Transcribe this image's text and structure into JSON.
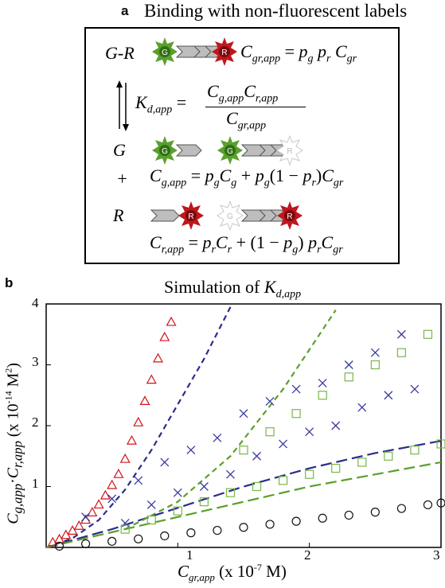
{
  "panel_a": {
    "label": "a",
    "title": "Binding with non-fluorescent labels",
    "species": {
      "complex": "G-R",
      "green": "G",
      "plus": "+",
      "red": "R"
    },
    "marker_letters": {
      "green": "G",
      "red": "R"
    },
    "colors": {
      "green_marker": "#5aa02c",
      "red_marker": "#c0161d",
      "ghost_marker": "#c8c8c8",
      "arrow_fill": "#bdbdbd"
    }
  },
  "panel_b": {
    "label": "b",
    "title_prefix": "Simulation of ",
    "title_symbol": "K",
    "title_subscript": "d,app",
    "xlabel_suffix": "(x 10",
    "ylabel_suffix": "(x 10",
    "x_ticks": [
      "1",
      "2",
      "3"
    ],
    "y_ticks": [
      "1",
      "2",
      "3",
      "4"
    ]
  },
  "chart_data": {
    "type": "scatter",
    "title": "Simulation of K_d,app",
    "xlabel": "C_gr,app (x 10^-7 M)",
    "ylabel": "C_g,app · C_r,app (x 10^-14 M^2)",
    "xlim": [
      0,
      3
    ],
    "ylim": [
      0,
      4
    ],
    "series": [
      {
        "marker": "triangle",
        "color": "#d0141a",
        "x": [
          0.05,
          0.1,
          0.15,
          0.2,
          0.25,
          0.3,
          0.35,
          0.4,
          0.45,
          0.5,
          0.55,
          0.6,
          0.65,
          0.7,
          0.75,
          0.8,
          0.85,
          0.9,
          0.95
        ],
        "y": [
          0.08,
          0.13,
          0.2,
          0.27,
          0.35,
          0.45,
          0.57,
          0.7,
          0.85,
          1.02,
          1.2,
          1.45,
          1.75,
          2.05,
          2.4,
          2.75,
          3.1,
          3.45,
          3.7
        ]
      },
      {
        "marker": "cross",
        "color": "#3a3aa0",
        "x": [
          0.3,
          0.5,
          0.7,
          0.9,
          1.1,
          1.3,
          1.5,
          1.7,
          1.9,
          2.1,
          2.3,
          2.5,
          2.7,
          0.6,
          0.8,
          1.0,
          1.2,
          1.4,
          1.6,
          1.8,
          2.0,
          2.2,
          2.4,
          2.6,
          2.8
        ],
        "y": [
          0.5,
          0.8,
          1.1,
          1.4,
          1.6,
          1.8,
          2.2,
          2.4,
          2.6,
          2.7,
          3.0,
          3.2,
          3.5,
          0.4,
          0.7,
          0.9,
          1.0,
          1.2,
          1.5,
          1.7,
          1.9,
          2.0,
          2.3,
          2.5,
          2.6
        ]
      },
      {
        "marker": "square",
        "color": "#7ab648",
        "x": [
          0.6,
          0.8,
          1.0,
          1.2,
          1.4,
          1.6,
          1.8,
          2.0,
          2.2,
          2.4,
          2.6,
          2.8,
          3.0,
          1.5,
          1.7,
          1.9,
          2.1,
          2.3,
          2.5,
          2.7,
          2.9
        ],
        "y": [
          0.3,
          0.45,
          0.6,
          0.75,
          0.9,
          1.0,
          1.1,
          1.2,
          1.3,
          1.4,
          1.5,
          1.6,
          1.7,
          1.6,
          1.9,
          2.2,
          2.5,
          2.8,
          3.0,
          3.2,
          3.5
        ]
      },
      {
        "marker": "circle",
        "color": "#111111",
        "x": [
          0.1,
          0.3,
          0.5,
          0.7,
          0.9,
          1.1,
          1.3,
          1.5,
          1.7,
          1.9,
          2.1,
          2.3,
          2.5,
          2.7,
          2.9,
          3.0
        ],
        "y": [
          0.02,
          0.06,
          0.1,
          0.14,
          0.19,
          0.24,
          0.28,
          0.33,
          0.38,
          0.43,
          0.48,
          0.53,
          0.58,
          0.64,
          0.7,
          0.73
        ]
      }
    ],
    "dashed_lines": [
      {
        "color": "#2c2c8c",
        "x": [
          0,
          0.2,
          0.4,
          0.6,
          0.8,
          1.0,
          1.2,
          1.4
        ],
        "y": [
          0,
          0.15,
          0.45,
          0.95,
          1.6,
          2.35,
          3.1,
          3.95
        ]
      },
      {
        "color": "#2c2c8c",
        "x": [
          0,
          0.5,
          1.0,
          1.5,
          2.0,
          2.5,
          3.0
        ],
        "y": [
          0,
          0.3,
          0.65,
          1.0,
          1.3,
          1.55,
          1.75
        ]
      },
      {
        "color": "#5aa02c",
        "x": [
          0.6,
          1.0,
          1.4,
          1.8,
          2.2
        ],
        "y": [
          0.3,
          0.75,
          1.5,
          2.6,
          3.9
        ]
      },
      {
        "color": "#5aa02c",
        "x": [
          0,
          0.5,
          1.0,
          1.5,
          2.0,
          2.5,
          3.0
        ],
        "y": [
          0,
          0.25,
          0.5,
          0.75,
          1.0,
          1.2,
          1.4
        ]
      }
    ]
  }
}
